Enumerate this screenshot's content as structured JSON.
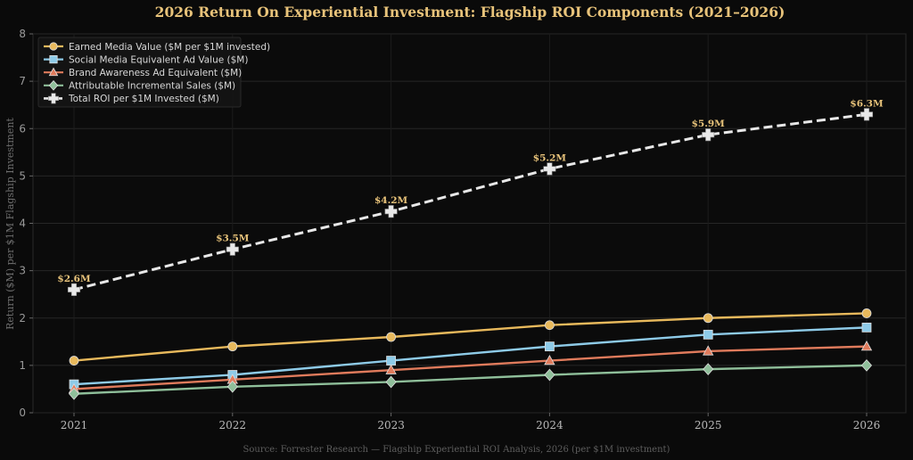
{
  "chart_data": {
    "type": "line",
    "title": "2026 Return On Experiential Investment: Flagship ROI Components (2021–2026)",
    "ylabel": "Return ($M) per $1M Flagship Investment",
    "source": "Source: Forrester Research — Flagship Experiential ROI Analysis, 2026 (per $1M investment)",
    "x": [
      "2021",
      "2022",
      "2023",
      "2024",
      "2025",
      "2026"
    ],
    "ylim": [
      0,
      8
    ],
    "yticks": [
      "0",
      "1",
      "2",
      "3",
      "4",
      "5",
      "6",
      "7",
      "8"
    ],
    "grid": true,
    "legend_position": "top-left",
    "series": [
      {
        "name": "Earned Media Value ($M per $1M invested)",
        "values": [
          1.1,
          1.4,
          1.6,
          1.85,
          2.0,
          2.1
        ],
        "color": "#e8b95c",
        "marker": "circle",
        "dashed": false
      },
      {
        "name": "Social Media Equivalent Ad Value ($M)",
        "values": [
          0.6,
          0.8,
          1.1,
          1.4,
          1.65,
          1.8
        ],
        "color": "#8ecbe8",
        "marker": "square",
        "dashed": false
      },
      {
        "name": "Brand Awareness Ad Equivalent ($M)",
        "values": [
          0.5,
          0.7,
          0.9,
          1.1,
          1.3,
          1.4
        ],
        "color": "#e07b5c",
        "marker": "triangle",
        "dashed": false
      },
      {
        "name": "Attributable Incremental Sales ($M)",
        "values": [
          0.4,
          0.55,
          0.65,
          0.8,
          0.92,
          1.0
        ],
        "color": "#8fbf9a",
        "marker": "diamond",
        "dashed": false
      },
      {
        "name": "Total ROI per $1M Invested ($M)",
        "values": [
          2.6,
          3.45,
          4.25,
          5.15,
          5.87,
          6.3
        ],
        "color": "#e8e8e8",
        "marker": "plus",
        "dashed": true,
        "labels": [
          "$2.6M",
          "$3.5M",
          "$4.2M",
          "$5.2M",
          "$5.9M",
          "$6.3M"
        ]
      }
    ]
  }
}
